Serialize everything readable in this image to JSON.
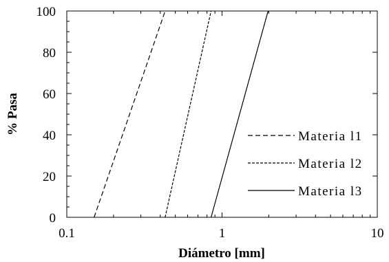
{
  "chart_data": {
    "type": "line",
    "xlabel": "Diámetro [mm]",
    "ylabel": "% Pasa",
    "xscale": "log",
    "xlim": [
      0.1,
      10
    ],
    "ylim": [
      0,
      100
    ],
    "x_ticks": [
      0.1,
      1,
      10
    ],
    "x_tick_labels": [
      "0.1",
      "1",
      "10"
    ],
    "y_ticks": [
      0,
      20,
      40,
      60,
      80,
      100
    ],
    "y_tick_labels": [
      "0",
      "20",
      "40",
      "60",
      "80",
      "100"
    ],
    "grid": false,
    "legend_position": "right",
    "series": [
      {
        "name": "Materia l1",
        "line_style": "dashed",
        "color": "#000000",
        "x": [
          0.15,
          0.43
        ],
        "y": [
          0,
          100
        ]
      },
      {
        "name": "Materia l2",
        "line_style": "dotted",
        "color": "#000000",
        "x": [
          0.43,
          0.85
        ],
        "y": [
          0,
          100
        ]
      },
      {
        "name": "Materia l3",
        "line_style": "solid",
        "color": "#000000",
        "x": [
          0.85,
          1.98
        ],
        "y": [
          0,
          100
        ]
      }
    ]
  }
}
